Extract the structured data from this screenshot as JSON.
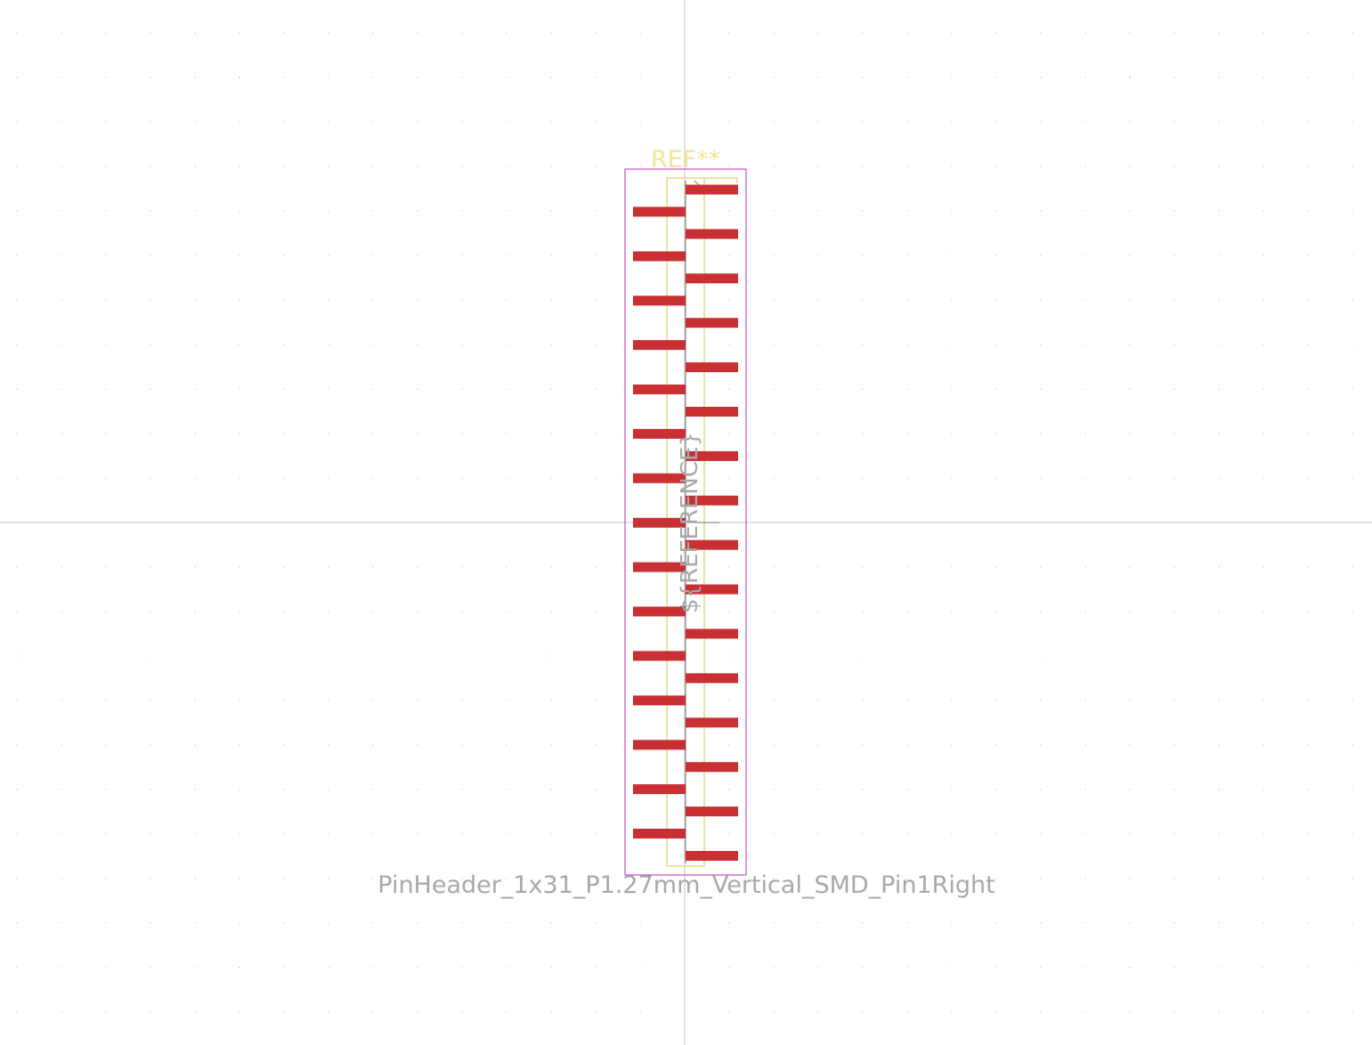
{
  "footprint": {
    "reference_silk": "REF**",
    "reference_fab": "${REFERENCE}",
    "value": "PinHeader_1x31_P1.27mm_Vertical_SMD_Pin1Right",
    "pin_count": 31
  },
  "colors": {
    "background": "#ffffff",
    "pad": "#c83034",
    "courtyard": "#c050c8",
    "silkscreen": "#e6dc8a",
    "fabrication": "#8c8c8c",
    "text_gray": "#a8a8a8",
    "grid": "#c8c8c8"
  }
}
